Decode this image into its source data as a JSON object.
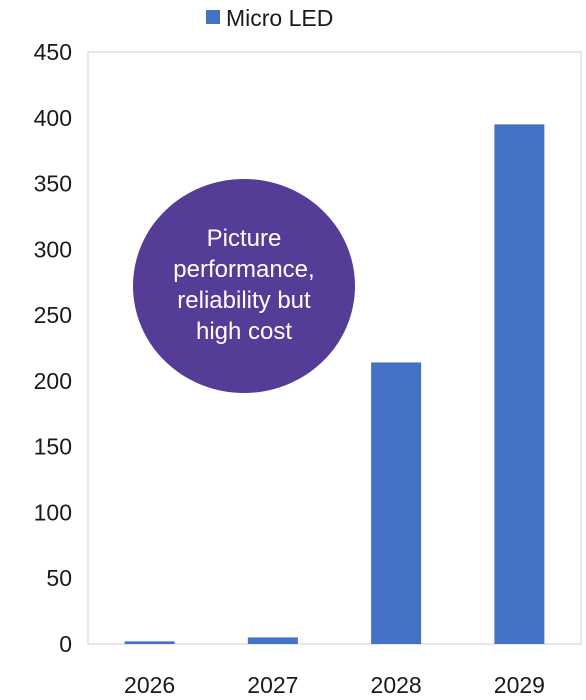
{
  "chart_data": {
    "type": "bar",
    "categories": [
      "2026",
      "2027",
      "2028",
      "2029"
    ],
    "series": [
      {
        "name": "Micro LED",
        "values": [
          2,
          5,
          214,
          395
        ],
        "color": "#4472c4"
      }
    ],
    "ylim": [
      0,
      450
    ],
    "yticks": [
      0,
      50,
      100,
      150,
      200,
      250,
      300,
      350,
      400,
      450
    ],
    "grid": false,
    "legend_position": "top-center",
    "callout": {
      "lines": [
        "Picture",
        "performance,",
        "reliability but",
        "high cost"
      ],
      "color": "#553c96"
    }
  }
}
